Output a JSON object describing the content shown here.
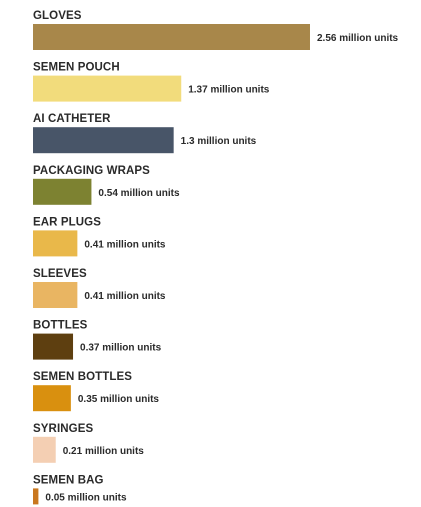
{
  "chart_data": {
    "type": "bar",
    "orientation": "horizontal",
    "title": "",
    "xlabel": "",
    "ylabel": "",
    "grid": false,
    "legend": "none",
    "categories": [
      "GLOVES",
      "SEMEN POUCH",
      "AI CATHETER",
      "PACKAGING WRAPS",
      "EAR PLUGS",
      "SLEEVES",
      "BOTTLES",
      "SEMEN BOTTLES",
      "SYRINGES",
      "SEMEN BAG"
    ],
    "values": [
      2.56,
      1.37,
      1.3,
      0.54,
      0.41,
      0.41,
      0.37,
      0.35,
      0.21,
      0.05
    ],
    "value_labels": [
      "2.56 million units",
      "1.37 million units",
      "1.3 million units",
      "0.54 million units",
      "0.41 million units",
      "0.41 million units",
      "0.37 million units",
      "0.35 million units",
      "0.21 million units",
      "0.05 million units"
    ],
    "colors": [
      "#a8874a",
      "#f2dc7c",
      "#485568",
      "#7d8231",
      "#e9b84a",
      "#e9b562",
      "#5e3f10",
      "#d9900f",
      "#f4cfb3",
      "#c9771e"
    ]
  }
}
